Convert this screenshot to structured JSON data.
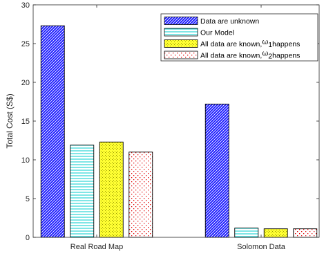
{
  "chart_data": {
    "type": "bar",
    "title": "",
    "xlabel": "",
    "ylabel": "Total Cost (S$)",
    "ylim": [
      0,
      30
    ],
    "yticks": [
      0,
      5,
      10,
      15,
      20,
      25,
      30
    ],
    "categories": [
      "Real Road Map",
      "Solomon Data"
    ],
    "grid": false,
    "legend_position": "top-right",
    "series": [
      {
        "name": "Data are unknown",
        "values": [
          27.3,
          17.2
        ],
        "color": "#1a1aff",
        "pattern": "diagonal-hatch"
      },
      {
        "name": "Our Model",
        "values": [
          11.9,
          1.2
        ],
        "color": "#00e5e5",
        "pattern": "horizontal-lines"
      },
      {
        "name": "All data are known, ω1 happens",
        "legend_parts": {
          "text": "All data are known,",
          "symbol": "ω",
          "sub": "1",
          "tail": "happens"
        },
        "values": [
          12.3,
          1.1
        ],
        "color": "#ffff33",
        "pattern": "dots"
      },
      {
        "name": "All data are known, ω2 happens",
        "legend_parts": {
          "text": "All data are known,",
          "symbol": "ω",
          "sub": "2",
          "tail": "happens"
        },
        "values": [
          11.0,
          1.1
        ],
        "color": "#ff0000",
        "pattern": "red-dots"
      }
    ]
  }
}
